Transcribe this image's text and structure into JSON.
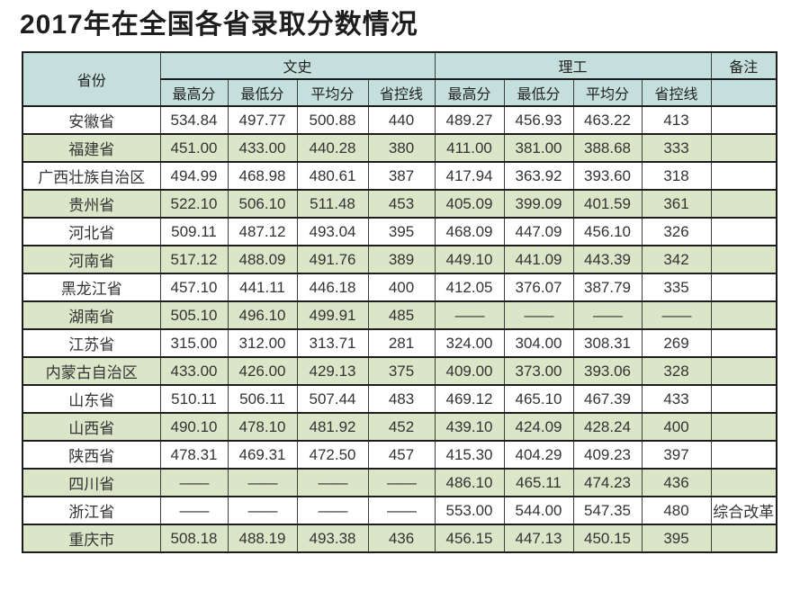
{
  "page": {
    "title": "2017年在全国各省录取分数情况"
  },
  "table": {
    "header": {
      "province_label": "省份",
      "wenshi_group_label": "文史",
      "ligong_group_label": "理工",
      "remark_label": "备注",
      "subheaders": [
        "最高分",
        "最低分",
        "平均分",
        "省控线"
      ]
    },
    "dash_symbol": "——"
  },
  "chart_data": {
    "type": "table",
    "title": "2017年在全国各省录取分数情况",
    "column_groups": [
      "省份",
      "文史",
      "理工",
      "备注"
    ],
    "columns": [
      "省份",
      "文史-最高分",
      "文史-最低分",
      "文史-平均分",
      "文史-省控线",
      "理工-最高分",
      "理工-最低分",
      "理工-平均分",
      "理工-省控线",
      "备注"
    ],
    "rows": [
      [
        "安徽省",
        "534.84",
        "497.77",
        "500.88",
        "440",
        "489.27",
        "456.93",
        "463.22",
        "413",
        ""
      ],
      [
        "福建省",
        "451.00",
        "433.00",
        "440.28",
        "380",
        "411.00",
        "381.00",
        "388.68",
        "333",
        ""
      ],
      [
        "广西壮族自治区",
        "494.99",
        "468.98",
        "480.61",
        "387",
        "417.94",
        "363.92",
        "393.60",
        "318",
        ""
      ],
      [
        "贵州省",
        "522.10",
        "506.10",
        "511.48",
        "453",
        "405.09",
        "399.09",
        "401.59",
        "361",
        ""
      ],
      [
        "河北省",
        "509.11",
        "487.12",
        "493.04",
        "395",
        "468.09",
        "447.09",
        "456.10",
        "326",
        ""
      ],
      [
        "河南省",
        "517.12",
        "488.09",
        "491.76",
        "389",
        "449.10",
        "441.09",
        "443.39",
        "342",
        ""
      ],
      [
        "黑龙江省",
        "457.10",
        "441.11",
        "446.18",
        "400",
        "412.05",
        "376.07",
        "387.79",
        "335",
        ""
      ],
      [
        "湖南省",
        "505.10",
        "496.10",
        "499.91",
        "485",
        "——",
        "——",
        "——",
        "——",
        ""
      ],
      [
        "江苏省",
        "315.00",
        "312.00",
        "313.71",
        "281",
        "324.00",
        "304.00",
        "308.31",
        "269",
        ""
      ],
      [
        "内蒙古自治区",
        "433.00",
        "426.00",
        "429.13",
        "375",
        "409.00",
        "373.00",
        "393.06",
        "328",
        ""
      ],
      [
        "山东省",
        "510.11",
        "506.11",
        "507.44",
        "483",
        "469.12",
        "465.10",
        "467.39",
        "433",
        ""
      ],
      [
        "山西省",
        "490.10",
        "478.10",
        "481.92",
        "452",
        "439.10",
        "424.09",
        "428.24",
        "400",
        ""
      ],
      [
        "陕西省",
        "478.31",
        "469.31",
        "472.50",
        "457",
        "415.30",
        "404.29",
        "409.23",
        "397",
        ""
      ],
      [
        "四川省",
        "——",
        "——",
        "——",
        "——",
        "486.10",
        "465.11",
        "474.23",
        "436",
        ""
      ],
      [
        "浙江省",
        "——",
        "——",
        "——",
        "——",
        "553.00",
        "544.00",
        "547.35",
        "480",
        "综合改革"
      ],
      [
        "重庆市",
        "508.18",
        "488.19",
        "493.38",
        "436",
        "456.15",
        "447.13",
        "450.15",
        "395",
        ""
      ]
    ]
  },
  "colors": {
    "header_bg": "#c4dfdc",
    "row_alt_bg": "#dbe5c8",
    "row_bg": "#ffffff",
    "border": "#1d1d1d",
    "text": "#2e2e2e",
    "dash": "#5f5f5f"
  }
}
